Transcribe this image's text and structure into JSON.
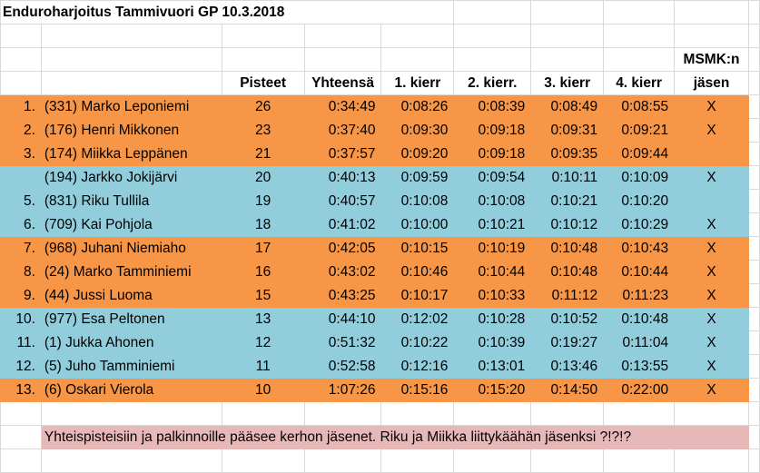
{
  "title": "Enduroharjoitus Tammivuori GP 10.3.2018",
  "headers": {
    "points": "Pisteet",
    "total": "Yhteensä",
    "lap1": "1. kierr",
    "lap2": "2. kierr.",
    "lap3": "3. kierr",
    "lap4": "4. kierr",
    "member_line1": "MSMK:n",
    "member_line2": "jäsen"
  },
  "rows": [
    {
      "pos": "1.",
      "name": "(331) Marko Leponiemi",
      "points": "26",
      "total": "0:34:49",
      "lap1": "0:08:26",
      "lap2": "0:08:39",
      "lap3": "0:08:49",
      "lap4": "0:08:55",
      "member": "X",
      "color": "orange"
    },
    {
      "pos": "2.",
      "name": "(176) Henri Mikkonen",
      "points": "23",
      "total": "0:37:40",
      "lap1": "0:09:30",
      "lap2": "0:09:18",
      "lap3": "0:09:31",
      "lap4": "0:09:21",
      "member": "X",
      "color": "orange"
    },
    {
      "pos": "3.",
      "name": "(174) Miikka Leppänen",
      "points": "21",
      "total": "0:37:57",
      "lap1": "0:09:20",
      "lap2": "0:09:18",
      "lap3": "0:09:35",
      "lap4": "0:09:44",
      "member": "",
      "color": "orange"
    },
    {
      "pos": "",
      "name": "(194) Jarkko Jokijärvi",
      "points": "20",
      "total": "0:40:13",
      "lap1": "0:09:59",
      "lap2": "0:09:54",
      "lap3": "0:10:11",
      "lap4": "0:10:09",
      "member": "X",
      "color": "blue"
    },
    {
      "pos": "5.",
      "name": "(831) Riku Tullila",
      "points": "19",
      "total": "0:40:57",
      "lap1": "0:10:08",
      "lap2": "0:10:08",
      "lap3": "0:10:21",
      "lap4": "0:10:20",
      "member": "",
      "color": "blue"
    },
    {
      "pos": "6.",
      "name": "(709) Kai Pohjola",
      "points": "18",
      "total": "0:41:02",
      "lap1": "0:10:00",
      "lap2": "0:10:21",
      "lap3": "0:10:12",
      "lap4": "0:10:29",
      "member": "X",
      "color": "blue"
    },
    {
      "pos": "7.",
      "name": "(968) Juhani Niemiaho",
      "points": "17",
      "total": "0:42:05",
      "lap1": "0:10:15",
      "lap2": "0:10:19",
      "lap3": "0:10:48",
      "lap4": "0:10:43",
      "member": "X",
      "color": "orange"
    },
    {
      "pos": "8.",
      "name": "(24) Marko Tamminiemi",
      "points": "16",
      "total": "0:43:02",
      "lap1": "0:10:46",
      "lap2": "0:10:44",
      "lap3": "0:10:48",
      "lap4": "0:10:44",
      "member": "X",
      "color": "orange"
    },
    {
      "pos": "9.",
      "name": "(44) Jussi Luoma",
      "points": "15",
      "total": "0:43:25",
      "lap1": "0:10:17",
      "lap2": "0:10:33",
      "lap3": "0:11:12",
      "lap4": "0:11:23",
      "member": "X",
      "color": "orange"
    },
    {
      "pos": "10.",
      "name": "(977) Esa Peltonen",
      "points": "13",
      "total": "0:44:10",
      "lap1": "0:12:02",
      "lap2": "0:10:28",
      "lap3": "0:10:52",
      "lap4": "0:10:48",
      "member": "X",
      "color": "blue"
    },
    {
      "pos": "11.",
      "name": "(1) Jukka Ahonen",
      "points": "12",
      "total": "0:51:32",
      "lap1": "0:10:22",
      "lap2": "0:10:39",
      "lap3": "0:19:27",
      "lap4": "0:11:04",
      "member": "X",
      "color": "blue"
    },
    {
      "pos": "12.",
      "name": "(5) Juho Tamminiemi",
      "points": "11",
      "total": "0:52:58",
      "lap1": "0:12:16",
      "lap2": "0:13:01",
      "lap3": "0:13:46",
      "lap4": "0:13:55",
      "member": "X",
      "color": "blue"
    },
    {
      "pos": "13.",
      "name": "(6) Oskari Vierola",
      "points": "10",
      "total": "1:07:26",
      "lap1": "0:15:16",
      "lap2": "0:15:20",
      "lap3": "0:14:50",
      "lap4": "0:22:00",
      "member": "X",
      "color": "orange"
    }
  ],
  "note": "Yhteispisteisiin ja palkinnoille pääsee kerhon jäsenet. Riku ja Miikka liittykäähän jäsenksi ?!?!?",
  "colors": {
    "orange": "#f79646",
    "blue": "#92cddc",
    "note_bg": "#e6b9b8",
    "grid": "#d9d9d9"
  }
}
